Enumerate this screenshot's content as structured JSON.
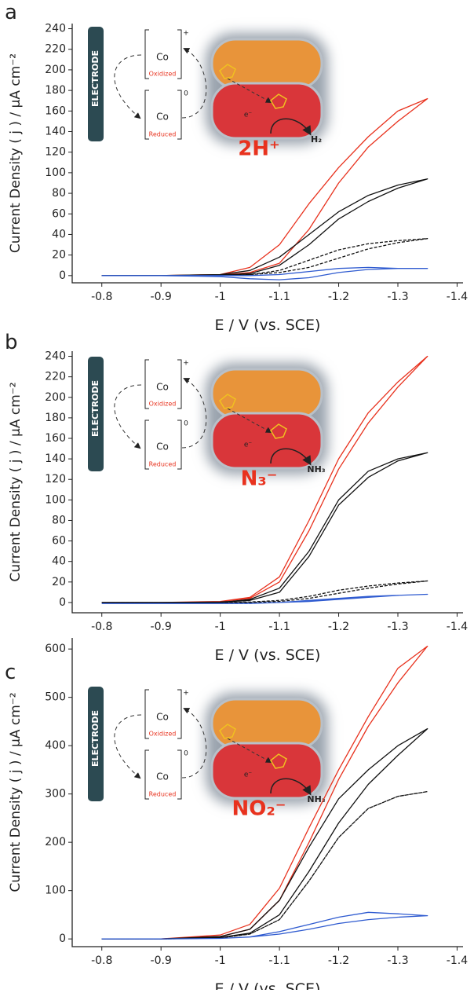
{
  "chart_data": [
    {
      "type": "line",
      "panel_label": "a",
      "ylabel": "Current Density ( j ) / µA cm⁻²",
      "xlabel": "E / V (vs. SCE)",
      "annotations": [
        "ELECTRODE",
        "Co",
        "+",
        "Oxidized",
        "Co",
        "0",
        "Reduced",
        "e⁻",
        "H₂",
        "2H⁺"
      ],
      "xlim": [
        -0.75,
        -1.41
      ],
      "xticks": [
        -0.8,
        -0.9,
        -1.0,
        -1.1,
        -1.2,
        -1.3,
        -1.4
      ],
      "ylim": [
        -7,
        245
      ],
      "yticks": [
        0,
        20,
        40,
        60,
        80,
        100,
        120,
        140,
        160,
        180,
        200,
        220,
        240
      ],
      "x": [
        -0.8,
        -0.9,
        -1.0,
        -1.05,
        -1.1,
        -1.15,
        -1.2,
        -1.25,
        -1.3,
        -1.35,
        -1.3,
        -1.25,
        -1.2,
        -1.15,
        -1.1,
        -1.05,
        -1.0,
        -0.9,
        -0.8
      ],
      "series": [
        {
          "color": "#e8321e",
          "dash": false,
          "values": [
            0,
            0,
            0.5,
            3,
            12,
            45,
            90,
            125,
            150,
            172,
            160,
            135,
            105,
            70,
            30,
            8,
            1,
            0,
            0
          ]
        },
        {
          "color": "#111111",
          "dash": false,
          "values": [
            0,
            0,
            0.5,
            2,
            10,
            30,
            55,
            72,
            85,
            94,
            88,
            78,
            62,
            40,
            18,
            5,
            1,
            0,
            0
          ]
        },
        {
          "color": "#111111",
          "dash": true,
          "values": [
            0,
            0,
            0,
            1,
            5,
            15,
            25,
            31,
            34,
            36,
            32,
            26,
            17,
            8,
            3,
            1,
            0,
            0,
            0
          ]
        },
        {
          "color": "#2f5bd0",
          "dash": false,
          "values": [
            0,
            0,
            -1,
            -3,
            -4,
            -2,
            3,
            6,
            7,
            7,
            7,
            8,
            7,
            4,
            1,
            0,
            0,
            0,
            0
          ]
        }
      ]
    },
    {
      "type": "line",
      "panel_label": "b",
      "ylabel": "Current Density ( j ) / µA cm⁻²",
      "xlabel": "E / V (vs. SCE)",
      "annotations": [
        "ELECTRODE",
        "Co",
        "+",
        "Oxidized",
        "Co",
        "0",
        "Reduced",
        "e⁻",
        "NH₃",
        "N₃⁻"
      ],
      "xlim": [
        -0.75,
        -1.41
      ],
      "xticks": [
        -0.8,
        -0.9,
        -1.0,
        -1.1,
        -1.2,
        -1.3,
        -1.4
      ],
      "ylim": [
        -10,
        245
      ],
      "yticks": [
        0,
        20,
        40,
        60,
        80,
        100,
        120,
        140,
        160,
        180,
        200,
        220,
        240
      ],
      "x": [
        -0.8,
        -0.9,
        -1.0,
        -1.05,
        -1.1,
        -1.15,
        -1.2,
        -1.25,
        -1.3,
        -1.35,
        -1.3,
        -1.25,
        -1.2,
        -1.15,
        -1.1,
        -1.05,
        -1.0,
        -0.9,
        -0.8
      ],
      "series": [
        {
          "color": "#e8321e",
          "dash": false,
          "values": [
            0,
            0,
            1,
            4,
            20,
            70,
            130,
            175,
            210,
            240,
            215,
            185,
            140,
            80,
            25,
            5,
            1,
            0,
            0
          ]
        },
        {
          "color": "#111111",
          "dash": false,
          "values": [
            0,
            0,
            0.5,
            2,
            10,
            45,
            95,
            122,
            138,
            146,
            140,
            128,
            100,
            50,
            14,
            3,
            0,
            0,
            0
          ]
        },
        {
          "color": "#111111",
          "dash": true,
          "values": [
            0,
            0,
            0,
            0.5,
            2,
            6,
            12,
            16,
            19,
            21,
            18,
            14,
            9,
            4,
            1,
            0,
            0,
            0,
            0
          ]
        },
        {
          "color": "#2f5bd0",
          "dash": false,
          "values": [
            -1,
            -1,
            -1,
            -1,
            0,
            2,
            4,
            6,
            7,
            8,
            7,
            5,
            3,
            1,
            0,
            -1,
            -1,
            -1,
            -1
          ]
        }
      ]
    },
    {
      "type": "line",
      "panel_label": "c",
      "ylabel": "Current Density ( j ) / µA cm⁻²",
      "xlabel": "E / V (vs. SCE)",
      "annotations": [
        "ELECTRODE",
        "Co",
        "+",
        "Oxidized",
        "Co",
        "0",
        "Reduced",
        "e⁻",
        "NH₃",
        "NO₂⁻"
      ],
      "xlim": [
        -0.75,
        -1.41
      ],
      "xticks": [
        -0.8,
        -0.9,
        -1.0,
        -1.1,
        -1.2,
        -1.3,
        -1.4
      ],
      "ylim": [
        -16,
        623
      ],
      "yticks": [
        0,
        100,
        200,
        300,
        400,
        500,
        600
      ],
      "x": [
        -0.8,
        -0.9,
        -1.0,
        -1.05,
        -1.1,
        -1.15,
        -1.2,
        -1.25,
        -1.3,
        -1.35,
        -1.3,
        -1.25,
        -1.2,
        -1.15,
        -1.1,
        -1.05,
        -1.0,
        -0.9,
        -0.8
      ],
      "series": [
        {
          "color": "#e8321e",
          "dash": false,
          "values": [
            0,
            0,
            5,
            20,
            80,
            200,
            330,
            440,
            530,
            606,
            560,
            460,
            350,
            230,
            105,
            30,
            8,
            0,
            0
          ]
        },
        {
          "color": "#111111",
          "dash": false,
          "values": [
            0,
            0,
            3,
            12,
            50,
            140,
            240,
            320,
            380,
            435,
            400,
            350,
            290,
            190,
            80,
            20,
            5,
            0,
            0
          ]
        },
        {
          "color": "#111111",
          "dash": true,
          "values": [
            0,
            0,
            2,
            10,
            40,
            120,
            210,
            270,
            295,
            305,
            295,
            270,
            210,
            120,
            40,
            10,
            2,
            0,
            0
          ]
        },
        {
          "color": "#2f5bd0",
          "dash": false,
          "values": [
            0,
            0,
            1,
            4,
            15,
            30,
            45,
            55,
            52,
            48,
            45,
            40,
            32,
            20,
            10,
            4,
            1,
            0,
            0
          ]
        }
      ]
    }
  ]
}
